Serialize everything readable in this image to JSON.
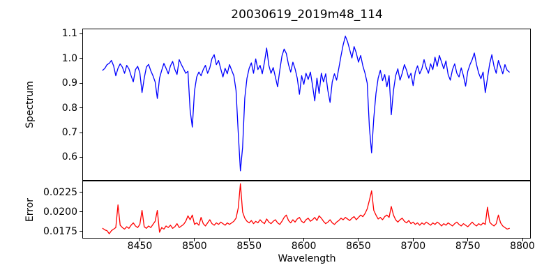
{
  "figure": {
    "title": "20030619_2019m48_114",
    "background_color": "#ffffff",
    "axis_color": "#000000"
  },
  "chart_data": [
    {
      "type": "line",
      "panel": "top",
      "title": "20030619_2019m48_114",
      "ylabel": "Spectrum",
      "xlabel": "",
      "grid": false,
      "legend": "none",
      "xlim": [
        8398,
        8807
      ],
      "ylim": [
        0.508,
        1.118
      ],
      "yticks": [
        1.1,
        1.0,
        0.9,
        0.8,
        0.7,
        0.6
      ],
      "ytick_labels": [
        "1.1",
        "1.0",
        "0.9",
        "0.8",
        "0.7",
        "0.6"
      ],
      "annotations": "absorption dips near 8452, 8466, 8498, 8542 (deepest, 0.545), 8610-8625, 8662, 8680; emission-like peak 1.09 near 8638",
      "series": [
        {
          "name": "spectrum",
          "color": "#0000ff",
          "x_start": 8416,
          "x_step": 2,
          "values": [
            0.952,
            0.96,
            0.975,
            0.98,
            0.992,
            0.97,
            0.93,
            0.96,
            0.978,
            0.965,
            0.94,
            0.972,
            0.958,
            0.93,
            0.905,
            0.955,
            0.968,
            0.942,
            0.862,
            0.92,
            0.965,
            0.976,
            0.95,
            0.93,
            0.905,
            0.838,
            0.92,
            0.952,
            0.98,
            0.96,
            0.938,
            0.97,
            0.988,
            0.956,
            0.935,
            0.995,
            0.975,
            0.958,
            0.94,
            0.948,
            0.79,
            0.722,
            0.868,
            0.925,
            0.945,
            0.93,
            0.955,
            0.972,
            0.94,
            0.962,
            1.0,
            1.015,
            0.975,
            0.992,
            0.958,
            0.925,
            0.96,
            0.938,
            0.975,
            0.952,
            0.93,
            0.87,
            0.7,
            0.545,
            0.64,
            0.84,
            0.92,
            0.96,
            0.982,
            0.94,
            0.998,
            0.955,
            0.972,
            0.938,
            0.985,
            1.042,
            0.972,
            0.94,
            0.963,
            0.925,
            0.885,
            0.952,
            1.01,
            1.038,
            1.02,
            0.975,
            0.945,
            0.985,
            0.958,
            0.92,
            0.855,
            0.93,
            0.895,
            0.94,
            0.915,
            0.945,
            0.89,
            0.828,
            0.92,
            0.858,
            0.94,
            0.905,
            0.938,
            0.87,
            0.822,
            0.905,
            0.938,
            0.912,
            0.96,
            1.01,
            1.055,
            1.09,
            1.068,
            1.035,
            1.002,
            1.048,
            1.022,
            0.985,
            1.012,
            0.97,
            0.94,
            0.9,
            0.72,
            0.618,
            0.758,
            0.858,
            0.92,
            0.952,
            0.91,
            0.935,
            0.885,
            0.93,
            0.772,
            0.87,
            0.93,
            0.958,
            0.912,
            0.94,
            0.975,
            0.952,
            0.92,
            0.94,
            0.89,
            0.945,
            0.97,
            0.938,
            0.958,
            0.995,
            0.962,
            0.94,
            0.978,
            0.955,
            1.005,
            0.968,
            1.012,
            0.985,
            0.958,
            0.99,
            0.935,
            0.912,
            0.955,
            0.978,
            0.94,
            0.925,
            0.962,
            0.93,
            0.888,
            0.948,
            0.975,
            0.995,
            1.022,
            0.975,
            0.94,
            0.918,
            0.945,
            0.862,
            0.92,
            0.978,
            1.015,
            0.968,
            0.94,
            0.992,
            0.965,
            0.938,
            0.975,
            0.952,
            0.945
          ]
        }
      ]
    },
    {
      "type": "line",
      "panel": "bottom",
      "ylabel": "Error",
      "xlabel": "Wavelength",
      "grid": false,
      "legend": "none",
      "xlim": [
        8398,
        8807
      ],
      "ylim": [
        0.01668,
        0.02392
      ],
      "yticks": [
        0.0225,
        0.02,
        0.0175
      ],
      "ytick_labels": [
        "0.0225",
        "0.0200",
        "0.0175"
      ],
      "xticks": [
        8450,
        8500,
        8550,
        8600,
        8650,
        8700,
        8750,
        8800
      ],
      "xtick_labels": [
        "8450",
        "8500",
        "8550",
        "8600",
        "8650",
        "8700",
        "8750",
        "8800"
      ],
      "annotations": "error spikes near 8430 (0.0209), 8452, 8466, 8542 (max 0.0236), 8662 (0.0227), 8680, 8768",
      "series": [
        {
          "name": "error",
          "color": "#ff0000",
          "x_start": 8416,
          "x_step": 2,
          "values": [
            0.0179,
            0.0177,
            0.0176,
            0.0172,
            0.0176,
            0.0178,
            0.018,
            0.0209,
            0.0183,
            0.018,
            0.0178,
            0.0181,
            0.0179,
            0.0183,
            0.0186,
            0.0182,
            0.018,
            0.0184,
            0.0202,
            0.0181,
            0.0179,
            0.0182,
            0.018,
            0.0184,
            0.0188,
            0.0202,
            0.0174,
            0.018,
            0.0178,
            0.0182,
            0.018,
            0.0183,
            0.0179,
            0.0181,
            0.0185,
            0.018,
            0.0182,
            0.0184,
            0.0188,
            0.0195,
            0.019,
            0.0196,
            0.0184,
            0.0186,
            0.0183,
            0.0193,
            0.0185,
            0.0182,
            0.0186,
            0.019,
            0.0185,
            0.0183,
            0.0186,
            0.0184,
            0.0187,
            0.0185,
            0.0183,
            0.0186,
            0.0184,
            0.0186,
            0.0188,
            0.0192,
            0.0205,
            0.0236,
            0.02,
            0.0192,
            0.0188,
            0.0186,
            0.0189,
            0.0185,
            0.0188,
            0.0186,
            0.019,
            0.0187,
            0.0185,
            0.0191,
            0.0187,
            0.0185,
            0.0188,
            0.019,
            0.0186,
            0.0184,
            0.0188,
            0.0193,
            0.0196,
            0.0189,
            0.0186,
            0.019,
            0.0187,
            0.0191,
            0.0193,
            0.0188,
            0.0186,
            0.019,
            0.0192,
            0.0188,
            0.019,
            0.0193,
            0.0189,
            0.0195,
            0.0192,
            0.0188,
            0.0185,
            0.0187,
            0.019,
            0.0186,
            0.0184,
            0.0187,
            0.0189,
            0.0192,
            0.019,
            0.0193,
            0.0191,
            0.0189,
            0.0192,
            0.0194,
            0.019,
            0.0193,
            0.0196,
            0.0194,
            0.0198,
            0.0204,
            0.0215,
            0.0227,
            0.0202,
            0.0196,
            0.0191,
            0.0193,
            0.019,
            0.0194,
            0.0196,
            0.0193,
            0.0207,
            0.0196,
            0.019,
            0.0187,
            0.019,
            0.0192,
            0.0188,
            0.0186,
            0.0189,
            0.0185,
            0.0187,
            0.0184,
            0.0186,
            0.0183,
            0.0186,
            0.0184,
            0.0187,
            0.0185,
            0.0183,
            0.0186,
            0.0184,
            0.0187,
            0.0185,
            0.0182,
            0.0185,
            0.0183,
            0.0186,
            0.0184,
            0.0182,
            0.0185,
            0.0187,
            0.0184,
            0.0182,
            0.0185,
            0.0183,
            0.0181,
            0.0184,
            0.0187,
            0.0184,
            0.0182,
            0.0185,
            0.0183,
            0.0186,
            0.0184,
            0.0206,
            0.0187,
            0.0184,
            0.0182,
            0.0185,
            0.0196,
            0.0186,
            0.0182,
            0.018,
            0.0178,
            0.0179
          ]
        }
      ]
    }
  ]
}
